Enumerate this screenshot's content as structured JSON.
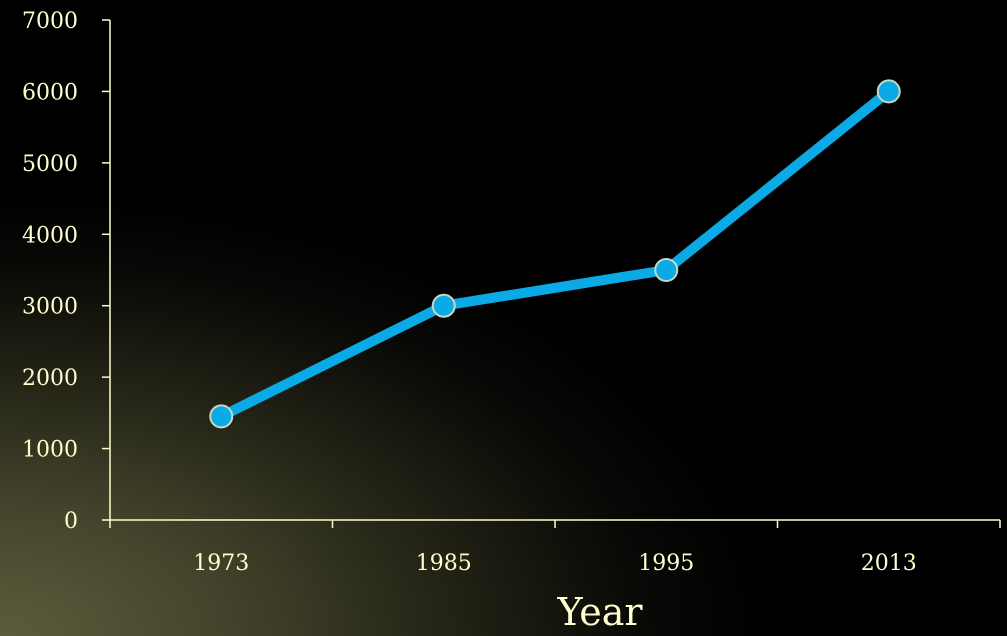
{
  "chart_data": {
    "type": "line",
    "title": "",
    "xlabel": "Year",
    "ylabel": "",
    "categories": [
      "1973",
      "1985",
      "1995",
      "2013"
    ],
    "series": [
      {
        "values": [
          1450,
          3000,
          3500,
          6000
        ]
      }
    ],
    "ylim": [
      0,
      7000
    ],
    "yticks": [
      "0",
      "1000",
      "2000",
      "3000",
      "4000",
      "5000",
      "6000",
      "7000"
    ],
    "grid": false,
    "legend": "none",
    "colors": {
      "line": "#0aaae6",
      "marker": "#0aaae6",
      "axis": "#ffffcc",
      "text": "#ffffcc"
    }
  }
}
